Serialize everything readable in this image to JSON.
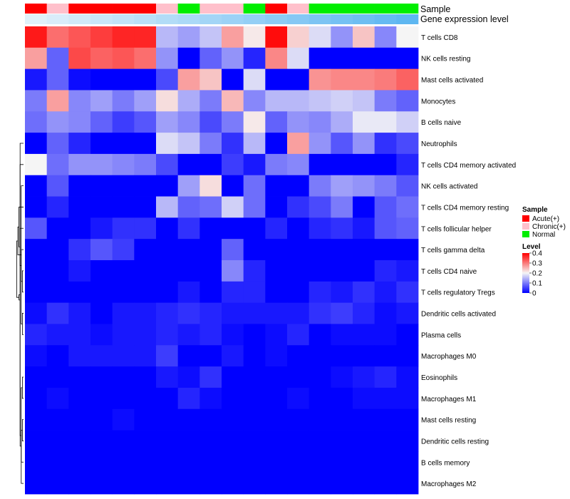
{
  "chart_data": {
    "type": "heatmap",
    "annotation_labels": {
      "sample": "Sample",
      "gene_level": "Gene expression level"
    },
    "columns": [
      {
        "sample": "Acute(+)",
        "gene_level": 0.05
      },
      {
        "sample": "Chronic(+)",
        "gene_level": 0.1
      },
      {
        "sample": "Acute(+)",
        "gene_level": 0.15
      },
      {
        "sample": "Acute(+)",
        "gene_level": 0.2
      },
      {
        "sample": "Acute(+)",
        "gene_level": 0.25
      },
      {
        "sample": "Acute(+)",
        "gene_level": 0.3
      },
      {
        "sample": "Chronic(+)",
        "gene_level": 0.35
      },
      {
        "sample": "Normal",
        "gene_level": 0.4
      },
      {
        "sample": "Chronic(+)",
        "gene_level": 0.45
      },
      {
        "sample": "Chronic(+)",
        "gene_level": 0.5
      },
      {
        "sample": "Normal",
        "gene_level": 0.55
      },
      {
        "sample": "Acute(+)",
        "gene_level": 0.6
      },
      {
        "sample": "Chronic(+)",
        "gene_level": 0.65
      },
      {
        "sample": "Normal",
        "gene_level": 0.7
      },
      {
        "sample": "Normal",
        "gene_level": 0.75
      },
      {
        "sample": "Normal",
        "gene_level": 0.8
      },
      {
        "sample": "Normal",
        "gene_level": 0.85
      },
      {
        "sample": "Normal",
        "gene_level": 0.9
      }
    ],
    "rows": [
      "T cells CD8",
      "NK cells resting",
      "Mast cells activated",
      "Monocytes",
      "B cells naive",
      "Neutrophils",
      "T cells CD4 memory activated",
      "NK cells activated",
      "T cells CD4 memory resting",
      "T cells follicular helper",
      "T cells gamma delta",
      "T cells CD4 naive",
      "T cells regulatory  Tregs",
      "Dendritic cells activated",
      "Plasma cells",
      "Macrophages M0",
      "Eosinophils",
      "Macrophages M1",
      "Mast cells resting",
      "Dendritic cells resting",
      "B cells memory",
      "Macrophages M2"
    ],
    "values": [
      [
        0.38,
        0.31,
        0.33,
        0.35,
        0.37,
        0.37,
        0.15,
        0.13,
        0.16,
        0.27,
        0.21,
        0.39,
        0.23,
        0.18,
        0.12,
        0.24,
        0.11,
        0.2
      ],
      [
        0.27,
        0.08,
        0.34,
        0.32,
        0.33,
        0.31,
        0.12,
        0.0,
        0.08,
        0.12,
        0.03,
        0.29,
        0.18,
        0.0,
        0.0,
        0.0,
        0.0,
        0.0
      ],
      [
        0.02,
        0.08,
        0.01,
        0.0,
        0.0,
        0.0,
        0.06,
        0.27,
        0.24,
        0.0,
        0.18,
        0.0,
        0.0,
        0.28,
        0.29,
        0.29,
        0.3,
        0.32
      ],
      [
        0.1,
        0.27,
        0.11,
        0.13,
        0.1,
        0.13,
        0.22,
        0.14,
        0.1,
        0.25,
        0.11,
        0.15,
        0.15,
        0.16,
        0.17,
        0.16,
        0.1,
        0.08
      ],
      [
        0.09,
        0.12,
        0.11,
        0.08,
        0.05,
        0.07,
        0.13,
        0.11,
        0.06,
        0.1,
        0.21,
        0.08,
        0.12,
        0.11,
        0.14,
        0.19,
        0.19,
        0.17
      ],
      [
        0.0,
        0.08,
        0.03,
        0.0,
        0.0,
        0.0,
        0.18,
        0.16,
        0.1,
        0.04,
        0.15,
        0.0,
        0.27,
        0.12,
        0.07,
        0.12,
        0.04,
        0.06
      ],
      [
        0.2,
        0.09,
        0.12,
        0.12,
        0.11,
        0.1,
        0.06,
        0.0,
        0.0,
        0.05,
        0.02,
        0.1,
        0.11,
        0.0,
        0.0,
        0.0,
        0.0,
        0.03
      ],
      [
        0.0,
        0.07,
        0.0,
        0.0,
        0.0,
        0.0,
        0.0,
        0.13,
        0.22,
        0.0,
        0.09,
        0.0,
        0.0,
        0.1,
        0.13,
        0.12,
        0.1,
        0.07
      ],
      [
        0.0,
        0.03,
        0.0,
        0.0,
        0.0,
        0.0,
        0.15,
        0.08,
        0.09,
        0.17,
        0.09,
        0.0,
        0.04,
        0.06,
        0.1,
        0.0,
        0.07,
        0.09
      ],
      [
        0.07,
        0.0,
        0.0,
        0.02,
        0.04,
        0.04,
        0.0,
        0.04,
        0.0,
        0.0,
        0.0,
        0.03,
        0.0,
        0.03,
        0.04,
        0.02,
        0.07,
        0.08
      ],
      [
        0.0,
        0.0,
        0.04,
        0.07,
        0.05,
        0.0,
        0.0,
        0.0,
        0.0,
        0.08,
        0.0,
        0.0,
        0.0,
        0.0,
        0.0,
        0.0,
        0.0,
        0.0
      ],
      [
        0.0,
        0.0,
        0.02,
        0.0,
        0.0,
        0.0,
        0.0,
        0.0,
        0.0,
        0.11,
        0.03,
        0.0,
        0.0,
        0.0,
        0.0,
        0.0,
        0.03,
        0.02
      ],
      [
        0.0,
        0.0,
        0.0,
        0.0,
        0.0,
        0.0,
        0.0,
        0.02,
        0.0,
        0.03,
        0.03,
        0.0,
        0.0,
        0.03,
        0.02,
        0.04,
        0.02,
        0.04
      ],
      [
        0.01,
        0.04,
        0.02,
        0.0,
        0.02,
        0.02,
        0.03,
        0.04,
        0.03,
        0.02,
        0.02,
        0.02,
        0.02,
        0.04,
        0.05,
        0.03,
        0.01,
        0.02
      ],
      [
        0.03,
        0.02,
        0.02,
        0.01,
        0.02,
        0.02,
        0.03,
        0.02,
        0.03,
        0.01,
        0.0,
        0.01,
        0.03,
        0.0,
        0.01,
        0.01,
        0.01,
        0.0
      ],
      [
        0.01,
        0.0,
        0.02,
        0.02,
        0.02,
        0.02,
        0.05,
        0.0,
        0.0,
        0.02,
        0.0,
        0.01,
        0.0,
        0.0,
        0.0,
        0.0,
        0.0,
        0.0
      ],
      [
        0.0,
        0.0,
        0.0,
        0.0,
        0.0,
        0.0,
        0.02,
        0.01,
        0.04,
        0.0,
        0.0,
        0.0,
        0.0,
        0.0,
        0.01,
        0.02,
        0.03,
        0.01
      ],
      [
        0.0,
        0.01,
        0.0,
        0.0,
        0.0,
        0.0,
        0.0,
        0.03,
        0.01,
        0.0,
        0.0,
        0.0,
        0.01,
        0.0,
        0.0,
        0.01,
        0.01,
        0.01
      ],
      [
        0.0,
        0.0,
        0.0,
        0.0,
        0.01,
        0.0,
        0.0,
        0.0,
        0.0,
        0.0,
        0.0,
        0.0,
        0.0,
        0.0,
        0.0,
        0.0,
        0.0,
        0.0
      ],
      [
        0.0,
        0.0,
        0.0,
        0.0,
        0.0,
        0.0,
        0.0,
        0.0,
        0.0,
        0.0,
        0.0,
        0.0,
        0.0,
        0.0,
        0.0,
        0.0,
        0.0,
        0.0
      ],
      [
        0.0,
        0.0,
        0.0,
        0.0,
        0.0,
        0.0,
        0.0,
        0.0,
        0.0,
        0.0,
        0.0,
        0.0,
        0.0,
        0.0,
        0.0,
        0.0,
        0.0,
        0.0
      ],
      [
        0.0,
        0.0,
        0.0,
        0.0,
        0.0,
        0.0,
        0.0,
        0.0,
        0.0,
        0.0,
        0.0,
        0.0,
        0.0,
        0.0,
        0.0,
        0.0,
        0.0,
        0.0
      ]
    ],
    "color_scale": {
      "low": "#0000FF",
      "mid": "#F5F5F5",
      "high": "#FF0000",
      "domain": [
        0,
        0.2,
        0.4
      ]
    },
    "gene_level_scale": {
      "low": "#E8F4FB",
      "high": "#4FB0F0",
      "domain": [
        0,
        1
      ]
    },
    "legend": {
      "sample_title": "Sample",
      "sample_entries": [
        {
          "label": "Acute(+)",
          "color": "#FF0000"
        },
        {
          "label": "Chronic(+)",
          "color": "#FFC0CB"
        },
        {
          "label": "Normal",
          "color": "#00EE00"
        }
      ],
      "level_title": "Level",
      "level_ticks": [
        "0.4",
        "0.3",
        "0.2",
        "0.1",
        "0"
      ],
      "level_tick_values": [
        0.4,
        0.3,
        0.2,
        0.1,
        0
      ],
      "position": "right"
    },
    "row_dendrogram": "left",
    "dendrogram_merges": [
      [
        16,
        17
      ],
      [
        18,
        19
      ],
      [
        -2,
        20
      ],
      [
        21,
        -1
      ],
      [
        13,
        14
      ],
      [
        11,
        12
      ],
      [
        10,
        -6
      ],
      [
        9,
        -7
      ],
      [
        -8,
        8
      ],
      [
        -5,
        7
      ],
      [
        -4,
        6
      ],
      [
        -3,
        5
      ],
      [
        -9,
        -10
      ],
      [
        -11,
        -12
      ],
      [
        -13,
        -14
      ],
      [
        -15,
        -16
      ],
      [
        -17,
        -18
      ],
      [
        -19,
        -20
      ],
      [
        -21,
        -22
      ],
      [
        -23,
        -24
      ],
      [
        -25,
        -26
      ],
      [
        -27,
        -28
      ]
    ]
  }
}
